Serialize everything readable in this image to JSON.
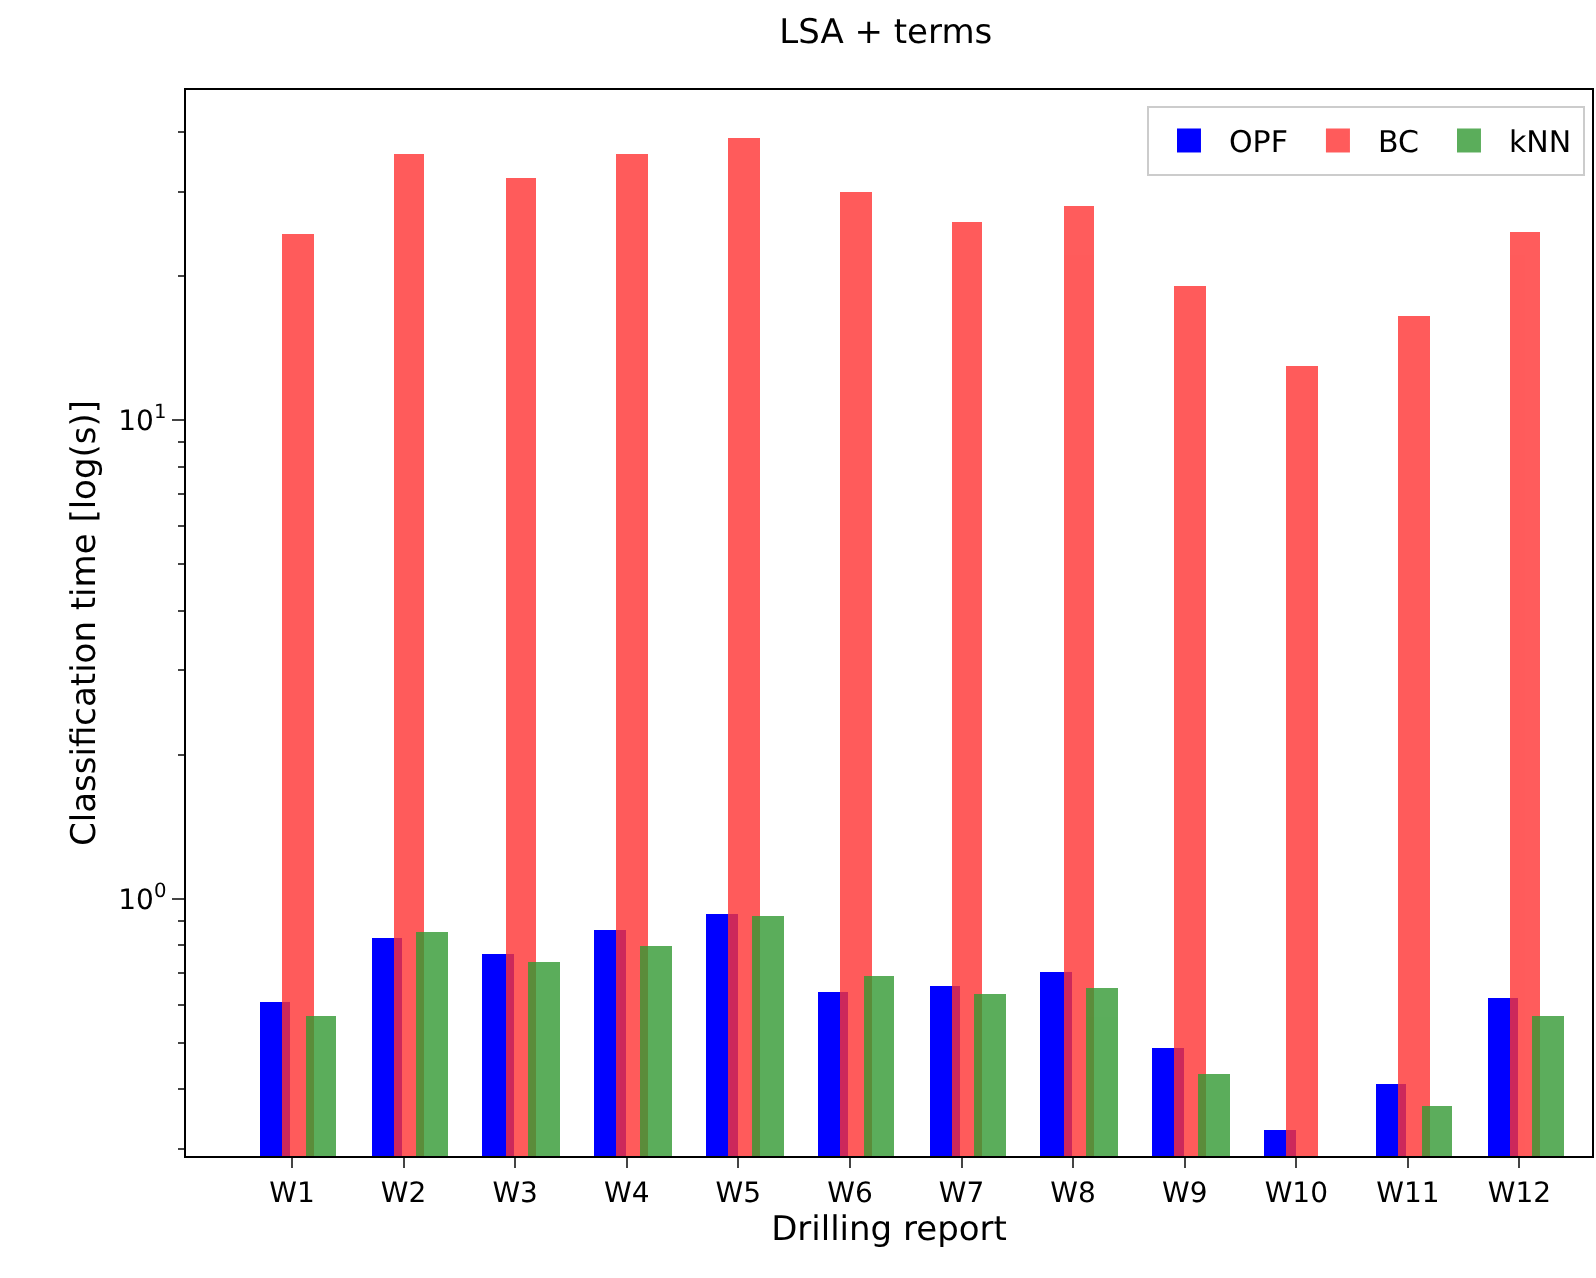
{
  "chart_data": {
    "type": "bar",
    "title": "LSA + terms",
    "xlabel": "Drilling report",
    "ylabel": "Classification time [log(s)]",
    "categories": [
      "W1",
      "W2",
      "W3",
      "W4",
      "W5",
      "W6",
      "W7",
      "W8",
      "W9",
      "W10",
      "W11",
      "W12"
    ],
    "series": [
      {
        "name": "OPF",
        "color": "#0000ff",
        "values": [
          0.61,
          0.83,
          0.77,
          0.86,
          0.93,
          0.64,
          0.66,
          0.7,
          0.49,
          0.33,
          0.41,
          0.62
        ]
      },
      {
        "name": "BC",
        "color": "#ff3333",
        "values": [
          24.5,
          36,
          32,
          36,
          39,
          30,
          26,
          28,
          19,
          13,
          16.5,
          24.7
        ]
      },
      {
        "name": "kNN",
        "color": "#339933",
        "values": [
          0.57,
          0.85,
          0.74,
          0.8,
          0.92,
          0.69,
          0.63,
          0.65,
          0.43,
          null,
          0.37,
          0.57
        ]
      }
    ],
    "log": "y",
    "ylim": [
      0.29,
      49
    ],
    "yticks": [
      {
        "value": 0.3,
        "label": null
      },
      {
        "value": 0.4,
        "label": null
      },
      {
        "value": 0.5,
        "label": null
      },
      {
        "value": 0.6,
        "label": null
      },
      {
        "value": 0.7,
        "label": null
      },
      {
        "value": 0.8,
        "label": null
      },
      {
        "value": 0.9,
        "label": null
      },
      {
        "value": 1,
        "label": "10$^{0}$"
      },
      {
        "value": 2,
        "label": null
      },
      {
        "value": 3,
        "label": null
      },
      {
        "value": 4,
        "label": null
      },
      {
        "value": 5,
        "label": null
      },
      {
        "value": 6,
        "label": null
      },
      {
        "value": 7,
        "label": null
      },
      {
        "value": 8,
        "label": null
      },
      {
        "value": 9,
        "label": null
      },
      {
        "value": 10,
        "label": "10$^{1}$"
      },
      {
        "value": 20,
        "label": null
      },
      {
        "value": 30,
        "label": null
      },
      {
        "value": 40,
        "label": null
      }
    ],
    "legend": "top right"
  }
}
